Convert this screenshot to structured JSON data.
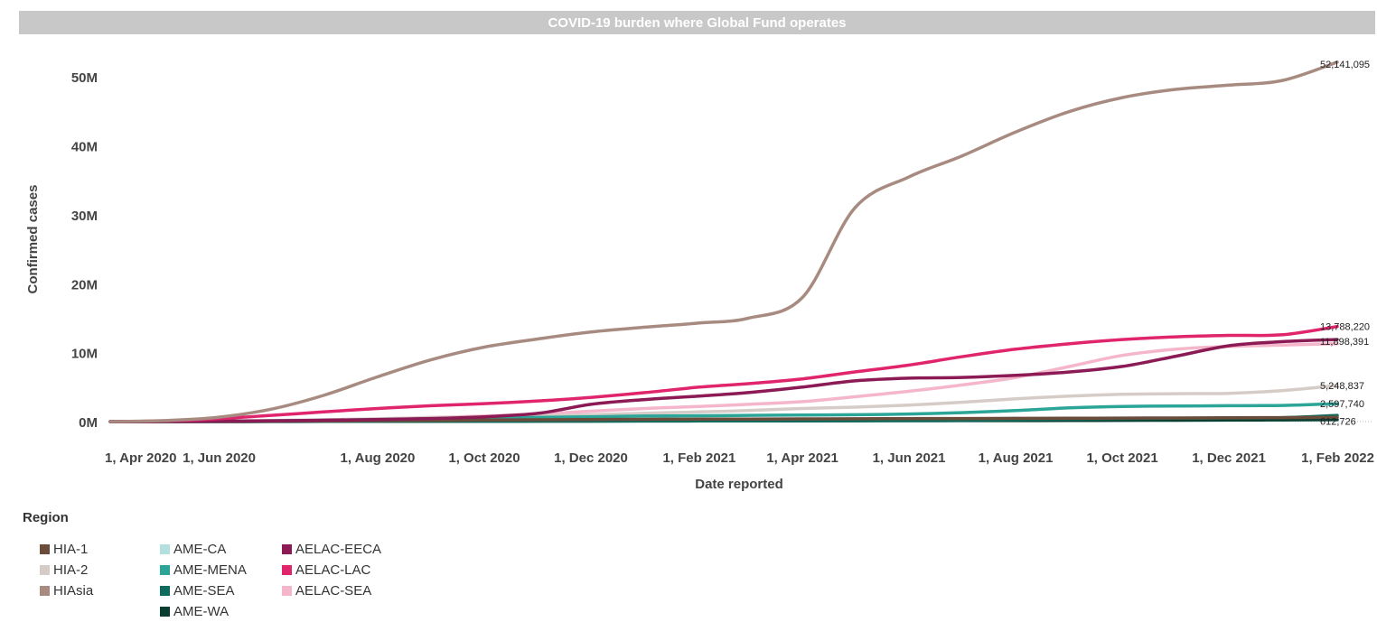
{
  "title": "COVID-19 burden where Global Fund operates",
  "chart_data": {
    "type": "line",
    "title": "COVID-19 burden where Global Fund operates",
    "xlabel": "Date reported",
    "ylabel": "Confirmed cases",
    "x_ticks": [
      "1, Apr 2020",
      "1, Jun 2020",
      "1, Aug 2020",
      "1, Oct 2020",
      "1, Dec 2020",
      "1, Feb 2021",
      "1, Apr 2021",
      "1, Jun 2021",
      "1, Aug 2021",
      "1, Oct 2021",
      "1, Dec 2021",
      "1, Feb 2022"
    ],
    "y_ticks": [
      "0M",
      "10M",
      "20M",
      "30M",
      "40M",
      "50M"
    ],
    "ylim": [
      0,
      55000000
    ],
    "xlim": [
      "2020-03-01",
      "2022-02-01"
    ],
    "x": [
      "2020-03-01",
      "2020-04-01",
      "2020-05-01",
      "2020-06-01",
      "2020-07-01",
      "2020-08-01",
      "2020-09-01",
      "2020-10-01",
      "2020-11-01",
      "2020-12-01",
      "2021-01-01",
      "2021-02-01",
      "2021-03-01",
      "2021-04-01",
      "2021-05-01",
      "2021-06-01",
      "2021-07-01",
      "2021-08-01",
      "2021-09-01",
      "2021-10-01",
      "2021-11-01",
      "2021-12-01",
      "2022-01-01",
      "2022-02-01"
    ],
    "series": [
      {
        "name": "HIA-1",
        "color": "#6b4c3b",
        "values": [
          0,
          10000,
          30000,
          60000,
          100000,
          140000,
          180000,
          220000,
          260000,
          300000,
          330000,
          350000,
          370000,
          390000,
          410000,
          430000,
          450000,
          470000,
          490000,
          510000,
          530000,
          550000,
          580000,
          612726
        ]
      },
      {
        "name": "HIA-2",
        "color": "#d6ccc7",
        "values": [
          0,
          30000,
          80000,
          150000,
          250000,
          400000,
          550000,
          700000,
          850000,
          1000000,
          1200000,
          1400000,
          1600000,
          1900000,
          2100000,
          2400000,
          2800000,
          3300000,
          3700000,
          3950000,
          4050000,
          4100000,
          4500000,
          5248837
        ]
      },
      {
        "name": "HIAsia",
        "color": "#a88b80",
        "values": [
          0,
          150000,
          600000,
          1800000,
          3800000,
          6500000,
          9000000,
          10800000,
          12000000,
          13000000,
          13700000,
          14300000,
          15000000,
          18000000,
          31000000,
          35500000,
          38500000,
          42000000,
          45000000,
          47000000,
          48200000,
          48800000,
          49500000,
          52141095
        ]
      },
      {
        "name": "AME-CA",
        "color": "#b3e0de",
        "values": [
          0,
          2000,
          5000,
          10000,
          20000,
          30000,
          40000,
          50000,
          60000,
          70000,
          80000,
          90000,
          100000,
          110000,
          120000,
          130000,
          140000,
          150000,
          160000,
          170000,
          180000,
          190000,
          200000,
          210000
        ]
      },
      {
        "name": "AME-MENA",
        "color": "#2ba598",
        "values": [
          0,
          20000,
          60000,
          120000,
          200000,
          300000,
          400000,
          500000,
          600000,
          700000,
          800000,
          850000,
          900000,
          950000,
          1000000,
          1100000,
          1300000,
          1600000,
          2000000,
          2200000,
          2250000,
          2300000,
          2350000,
          2597740
        ]
      },
      {
        "name": "AME-SEA",
        "color": "#0f6b5c",
        "values": [
          0,
          5000,
          10000,
          20000,
          30000,
          40000,
          50000,
          60000,
          70000,
          80000,
          90000,
          100000,
          110000,
          120000,
          140000,
          160000,
          200000,
          260000,
          350000,
          420000,
          480000,
          520000,
          580000,
          900000
        ]
      },
      {
        "name": "AME-WA",
        "color": "#0b3d31",
        "values": [
          0,
          2000,
          5000,
          10000,
          20000,
          30000,
          40000,
          50000,
          60000,
          70000,
          80000,
          90000,
          100000,
          110000,
          120000,
          130000,
          140000,
          150000,
          160000,
          180000,
          200000,
          220000,
          250000,
          300000
        ]
      },
      {
        "name": "AELAC-EECA",
        "color": "#8b1a55",
        "values": [
          0,
          20000,
          60000,
          120000,
          200000,
          300000,
          450000,
          700000,
          1200000,
          2500000,
          3200000,
          3700000,
          4200000,
          5000000,
          5900000,
          6300000,
          6400000,
          6700000,
          7200000,
          8000000,
          9500000,
          11000000,
          11600000,
          11898391
        ]
      },
      {
        "name": "AELAC-LAC",
        "color": "#e0256c",
        "values": [
          0,
          100000,
          400000,
          900000,
          1400000,
          1900000,
          2300000,
          2600000,
          3000000,
          3500000,
          4200000,
          5000000,
          5500000,
          6200000,
          7200000,
          8200000,
          9400000,
          10500000,
          11300000,
          11900000,
          12300000,
          12500000,
          12600000,
          13788220
        ]
      },
      {
        "name": "AELAC-SEA",
        "color": "#f5b6cb",
        "values": [
          0,
          20000,
          60000,
          150000,
          250000,
          400000,
          600000,
          800000,
          1100000,
          1500000,
          1900000,
          2200000,
          2500000,
          2900000,
          3600000,
          4400000,
          5300000,
          6400000,
          8000000,
          9600000,
          10500000,
          10900000,
          11100000,
          11300000
        ]
      }
    ],
    "end_labels": [
      {
        "series": "HIAsia",
        "text": "52,141,095"
      },
      {
        "series": "AELAC-LAC",
        "text": "13,788,220"
      },
      {
        "series": "AELAC-EECA",
        "text": "11,898,391"
      },
      {
        "series": "HIA-2",
        "text": "5,248,837"
      },
      {
        "series": "AME-MENA",
        "text": "2,597,740"
      },
      {
        "series": "HIA-1",
        "text": "612,726"
      }
    ],
    "grid": false
  },
  "legend": {
    "title": "Region",
    "columns": [
      [
        {
          "label": "HIA-1",
          "color": "#6b4c3b"
        },
        {
          "label": "HIA-2",
          "color": "#d6ccc7"
        },
        {
          "label": "HIAsia",
          "color": "#a88b80"
        }
      ],
      [
        {
          "label": "AME-CA",
          "color": "#b3e0de"
        },
        {
          "label": "AME-MENA",
          "color": "#2ba598"
        },
        {
          "label": "AME-SEA",
          "color": "#0f6b5c"
        },
        {
          "label": "AME-WA",
          "color": "#0b3d31"
        }
      ],
      [
        {
          "label": "AELAC-EECA",
          "color": "#8b1a55"
        },
        {
          "label": "AELAC-LAC",
          "color": "#e0256c"
        },
        {
          "label": "AELAC-SEA",
          "color": "#f5b6cb"
        }
      ]
    ]
  }
}
